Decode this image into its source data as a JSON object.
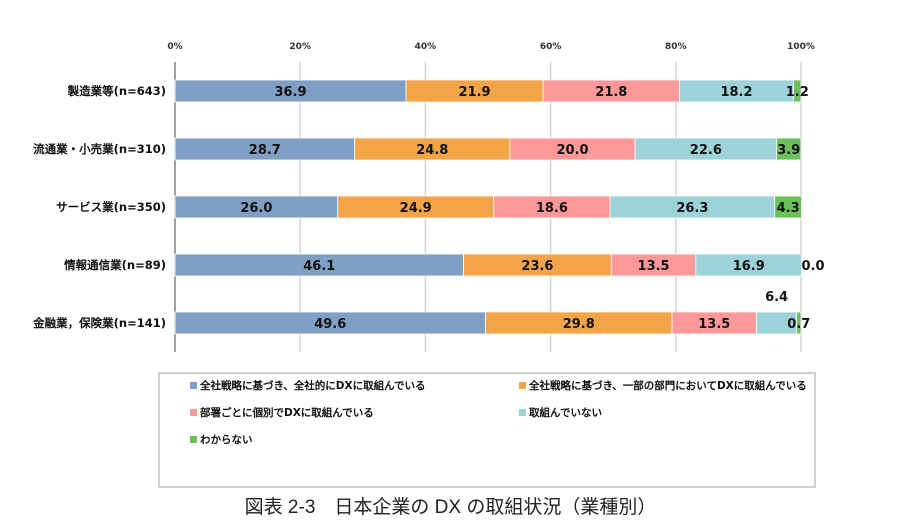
{
  "chart_data": {
    "type": "bar",
    "orientation": "horizontal",
    "stacked": "100%",
    "categories": [
      "製造業等(n=643)",
      "流通業・小売業(n=310)",
      "サービス業(n=350)",
      "情報通信業(n=89)",
      "金融業，保険業(n=141)"
    ],
    "series": [
      {
        "name": "全社戦略に基づき、全社的にDXに取組んでいる",
        "color": "#7f9fc4",
        "values": [
          36.9,
          28.7,
          26.0,
          46.1,
          49.6
        ]
      },
      {
        "name": "全社戦略に基づき、一部の部門においてDXに取組んでいる",
        "color": "#f2a447",
        "values": [
          21.9,
          24.8,
          24.9,
          23.6,
          29.8
        ]
      },
      {
        "name": "部署ごとに個別でDXに取組んでいる",
        "color": "#ff9999",
        "values": [
          21.8,
          20.0,
          18.6,
          13.5,
          13.5
        ]
      },
      {
        "name": "取組んでいない",
        "color": "#9dd3d8",
        "values": [
          18.2,
          22.6,
          26.3,
          16.9,
          6.4
        ]
      },
      {
        "name": "わからない",
        "color": "#6cc05a",
        "values": [
          1.2,
          3.9,
          4.3,
          0.0,
          0.7
        ]
      }
    ],
    "xlim": [
      0,
      100
    ],
    "xticks": [
      "0%",
      "20%",
      "40%",
      "60%",
      "80%",
      "100%"
    ],
    "grid": true,
    "legend": "bottom",
    "title": "図表 2-3　日本企業の DX の取組状況（業種別）"
  }
}
